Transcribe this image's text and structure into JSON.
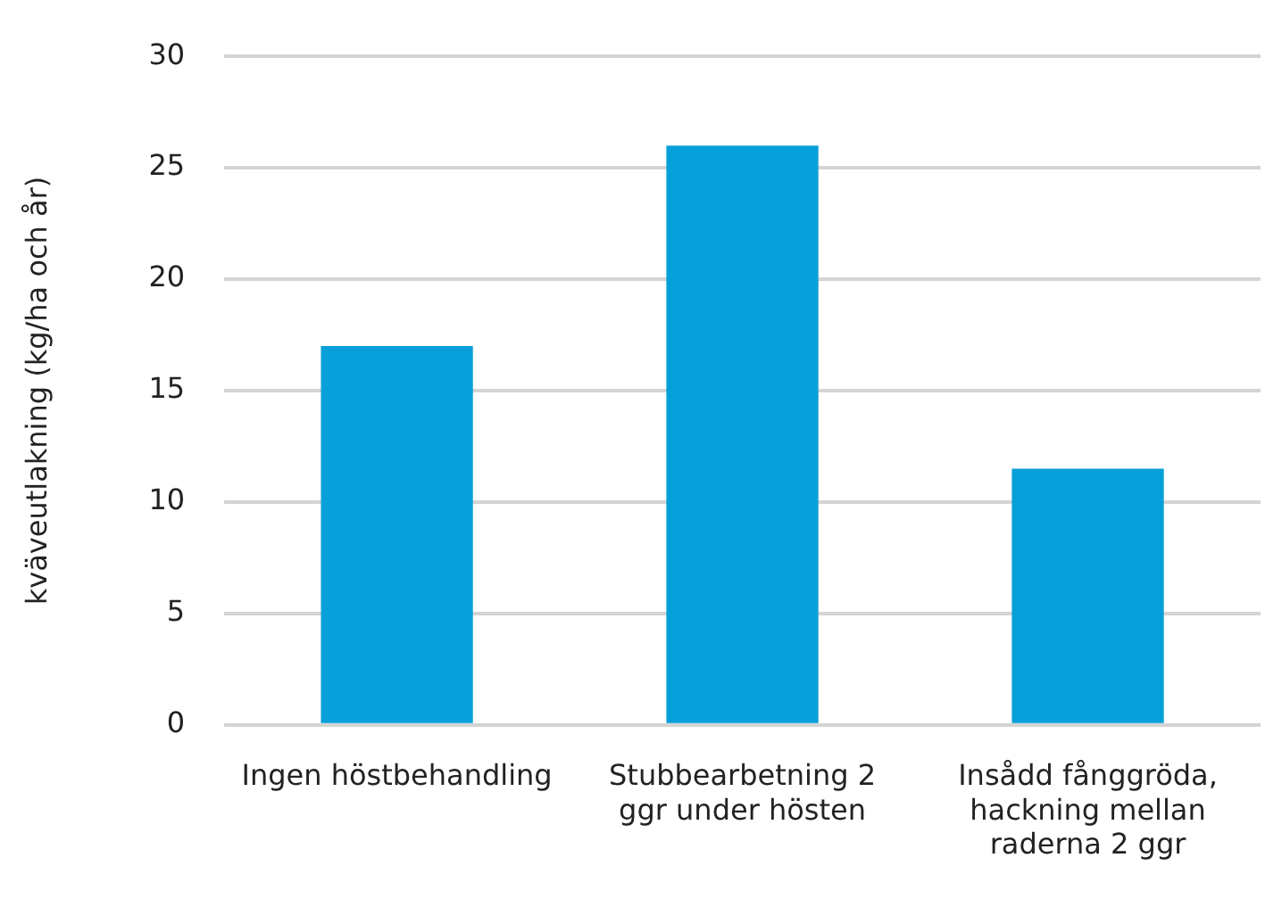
{
  "chart_data": {
    "type": "bar",
    "ylabel": "kväveutlakning (kg/ha och år)",
    "categories": [
      "Ingen höstbehandling",
      "Stubbearbetning 2 ggr under hösten",
      "Insådd fånggröda, hackning mellan raderna 2 ggr"
    ],
    "values": [
      17,
      26,
      11.5
    ],
    "color": "#069fd9",
    "ylim": [
      0,
      30
    ],
    "yticks": [
      0,
      5,
      10,
      15,
      20,
      25,
      30
    ],
    "grid": "y"
  }
}
